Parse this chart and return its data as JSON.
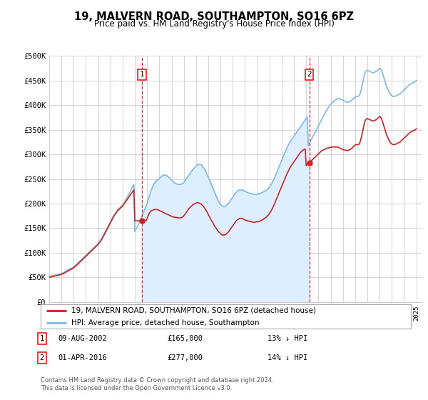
{
  "title": "19, MALVERN ROAD, SOUTHAMPTON, SO16 6PZ",
  "subtitle": "Price paid vs. HM Land Registry's House Price Index (HPI)",
  "ylabel_ticks": [
    "£0",
    "£50K",
    "£100K",
    "£150K",
    "£200K",
    "£250K",
    "£300K",
    "£350K",
    "£400K",
    "£450K",
    "£500K"
  ],
  "ytick_vals": [
    0,
    50000,
    100000,
    150000,
    200000,
    250000,
    300000,
    350000,
    400000,
    450000,
    500000
  ],
  "xlim_start": 1995.0,
  "xlim_end": 2025.5,
  "ylim": [
    0,
    500000
  ],
  "hpi_color": "#7cb9e8",
  "price_color": "#cc2222",
  "transaction_line_color": "#cc2222",
  "shade_color": "#ddeeff",
  "background_color": "#ffffff",
  "grid_color": "#cccccc",
  "legend_label_price": "19, MALVERN ROAD, SOUTHAMPTON, SO16 6PZ (detached house)",
  "legend_label_hpi": "HPI: Average price, detached house, Southampton",
  "transactions": [
    {
      "num": 1,
      "year": 2002.6,
      "label": "09-AUG-2002",
      "amount": "£165,000",
      "pct": "13% ↓ HPI"
    },
    {
      "num": 2,
      "year": 2016.25,
      "label": "01-APR-2016",
      "amount": "£277,000",
      "pct": "14% ↓ HPI"
    }
  ],
  "footer": "Contains HM Land Registry data © Crown copyright and database right 2024.\nThis data is licensed under the Open Government Licence v3.0.",
  "hpi_data_x": [
    1995.0,
    1995.08,
    1995.17,
    1995.25,
    1995.33,
    1995.42,
    1995.5,
    1995.58,
    1995.67,
    1995.75,
    1995.83,
    1995.92,
    1996.0,
    1996.08,
    1996.17,
    1996.25,
    1996.33,
    1996.42,
    1996.5,
    1996.58,
    1996.67,
    1996.75,
    1996.83,
    1996.92,
    1997.0,
    1997.08,
    1997.17,
    1997.25,
    1997.33,
    1997.42,
    1997.5,
    1997.58,
    1997.67,
    1997.75,
    1997.83,
    1997.92,
    1998.0,
    1998.08,
    1998.17,
    1998.25,
    1998.33,
    1998.42,
    1998.5,
    1998.58,
    1998.67,
    1998.75,
    1998.83,
    1998.92,
    1999.0,
    1999.08,
    1999.17,
    1999.25,
    1999.33,
    1999.42,
    1999.5,
    1999.58,
    1999.67,
    1999.75,
    1999.83,
    1999.92,
    2000.0,
    2000.08,
    2000.17,
    2000.25,
    2000.33,
    2000.42,
    2000.5,
    2000.58,
    2000.67,
    2000.75,
    2000.83,
    2000.92,
    2001.0,
    2001.08,
    2001.17,
    2001.25,
    2001.33,
    2001.42,
    2001.5,
    2001.58,
    2001.67,
    2001.75,
    2001.83,
    2001.92,
    2002.0,
    2002.08,
    2002.17,
    2002.25,
    2002.33,
    2002.42,
    2002.5,
    2002.58,
    2002.67,
    2002.75,
    2002.83,
    2002.92,
    2003.0,
    2003.08,
    2003.17,
    2003.25,
    2003.33,
    2003.42,
    2003.5,
    2003.58,
    2003.67,
    2003.75,
    2003.83,
    2003.92,
    2004.0,
    2004.08,
    2004.17,
    2004.25,
    2004.33,
    2004.42,
    2004.5,
    2004.58,
    2004.67,
    2004.75,
    2004.83,
    2004.92,
    2005.0,
    2005.08,
    2005.17,
    2005.25,
    2005.33,
    2005.42,
    2005.5,
    2005.58,
    2005.67,
    2005.75,
    2005.83,
    2005.92,
    2006.0,
    2006.08,
    2006.17,
    2006.25,
    2006.33,
    2006.42,
    2006.5,
    2006.58,
    2006.67,
    2006.75,
    2006.83,
    2006.92,
    2007.0,
    2007.08,
    2007.17,
    2007.25,
    2007.33,
    2007.42,
    2007.5,
    2007.58,
    2007.67,
    2007.75,
    2007.83,
    2007.92,
    2008.0,
    2008.08,
    2008.17,
    2008.25,
    2008.33,
    2008.42,
    2008.5,
    2008.58,
    2008.67,
    2008.75,
    2008.83,
    2008.92,
    2009.0,
    2009.08,
    2009.17,
    2009.25,
    2009.33,
    2009.42,
    2009.5,
    2009.58,
    2009.67,
    2009.75,
    2009.83,
    2009.92,
    2010.0,
    2010.08,
    2010.17,
    2010.25,
    2010.33,
    2010.42,
    2010.5,
    2010.58,
    2010.67,
    2010.75,
    2010.83,
    2010.92,
    2011.0,
    2011.08,
    2011.17,
    2011.25,
    2011.33,
    2011.42,
    2011.5,
    2011.58,
    2011.67,
    2011.75,
    2011.83,
    2011.92,
    2012.0,
    2012.08,
    2012.17,
    2012.25,
    2012.33,
    2012.42,
    2012.5,
    2012.58,
    2012.67,
    2012.75,
    2012.83,
    2012.92,
    2013.0,
    2013.08,
    2013.17,
    2013.25,
    2013.33,
    2013.42,
    2013.5,
    2013.58,
    2013.67,
    2013.75,
    2013.83,
    2013.92,
    2014.0,
    2014.08,
    2014.17,
    2014.25,
    2014.33,
    2014.42,
    2014.5,
    2014.58,
    2014.67,
    2014.75,
    2014.83,
    2014.92,
    2015.0,
    2015.08,
    2015.17,
    2015.25,
    2015.33,
    2015.42,
    2015.5,
    2015.58,
    2015.67,
    2015.75,
    2015.83,
    2015.92,
    2016.0,
    2016.08,
    2016.17,
    2016.25,
    2016.33,
    2016.42,
    2016.5,
    2016.58,
    2016.67,
    2016.75,
    2016.83,
    2016.92,
    2017.0,
    2017.08,
    2017.17,
    2017.25,
    2017.33,
    2017.42,
    2017.5,
    2017.58,
    2017.67,
    2017.75,
    2017.83,
    2017.92,
    2018.0,
    2018.08,
    2018.17,
    2018.25,
    2018.33,
    2018.42,
    2018.5,
    2018.58,
    2018.67,
    2018.75,
    2018.83,
    2018.92,
    2019.0,
    2019.08,
    2019.17,
    2019.25,
    2019.33,
    2019.42,
    2019.5,
    2019.58,
    2019.67,
    2019.75,
    2019.83,
    2019.92,
    2020.0,
    2020.08,
    2020.17,
    2020.25,
    2020.33,
    2020.42,
    2020.5,
    2020.58,
    2020.67,
    2020.75,
    2020.83,
    2020.92,
    2021.0,
    2021.08,
    2021.17,
    2021.25,
    2021.33,
    2021.42,
    2021.5,
    2021.58,
    2021.67,
    2021.75,
    2021.83,
    2021.92,
    2022.0,
    2022.08,
    2022.17,
    2022.25,
    2022.33,
    2022.42,
    2022.5,
    2022.58,
    2022.67,
    2022.75,
    2022.83,
    2022.92,
    2023.0,
    2023.08,
    2023.17,
    2023.25,
    2023.33,
    2023.42,
    2023.5,
    2023.58,
    2023.67,
    2023.75,
    2023.83,
    2023.92,
    2024.0,
    2024.08,
    2024.17,
    2024.25,
    2024.33,
    2024.42,
    2024.5,
    2024.58,
    2024.67,
    2024.75,
    2024.83,
    2024.92,
    2025.0
  ],
  "hpi_data_y": [
    52000,
    52500,
    53000,
    53500,
    54000,
    54500,
    55000,
    55500,
    56000,
    56500,
    57000,
    57500,
    58000,
    59000,
    60000,
    61000,
    62000,
    63500,
    65000,
    66000,
    67000,
    68000,
    69000,
    70000,
    72000,
    73500,
    75000,
    77000,
    79000,
    81000,
    83000,
    85000,
    87000,
    89000,
    91000,
    93000,
    95000,
    97000,
    99000,
    101000,
    103000,
    105000,
    107000,
    109000,
    111000,
    113000,
    115000,
    117000,
    119000,
    122000,
    125000,
    128000,
    131000,
    135000,
    139000,
    143000,
    147000,
    151000,
    155000,
    159000,
    163000,
    167000,
    171000,
    175000,
    178000,
    181000,
    184000,
    187000,
    189000,
    191000,
    193000,
    195000,
    197000,
    200000,
    203000,
    207000,
    211000,
    215000,
    219000,
    223000,
    227000,
    231000,
    235000,
    239000,
    143000,
    147000,
    151000,
    155000,
    160000,
    165000,
    170000,
    175000,
    180000,
    185000,
    190000,
    195000,
    200000,
    207000,
    214000,
    221000,
    227000,
    232000,
    237000,
    241000,
    244000,
    246000,
    248000,
    249000,
    251000,
    253000,
    255000,
    257000,
    258000,
    258000,
    258000,
    257000,
    256000,
    254000,
    252000,
    250000,
    248000,
    246000,
    244000,
    242000,
    241000,
    240000,
    239000,
    239000,
    239000,
    239000,
    240000,
    241000,
    243000,
    246000,
    249000,
    252000,
    255000,
    258000,
    261000,
    264000,
    267000,
    270000,
    272000,
    274000,
    276000,
    278000,
    279000,
    280000,
    280000,
    279000,
    277000,
    274000,
    271000,
    267000,
    263000,
    258000,
    254000,
    249000,
    244000,
    239000,
    234000,
    229000,
    224000,
    219000,
    214000,
    209000,
    205000,
    201000,
    198000,
    196000,
    195000,
    194000,
    194000,
    195000,
    197000,
    199000,
    201000,
    204000,
    207000,
    210000,
    213000,
    216000,
    219000,
    222000,
    224000,
    226000,
    227000,
    228000,
    228000,
    228000,
    227000,
    226000,
    225000,
    224000,
    223000,
    222000,
    221000,
    221000,
    220000,
    220000,
    219000,
    219000,
    219000,
    219000,
    219000,
    219000,
    220000,
    221000,
    222000,
    223000,
    224000,
    225000,
    226000,
    227000,
    229000,
    231000,
    234000,
    237000,
    240000,
    244000,
    248000,
    253000,
    258000,
    263000,
    268000,
    273000,
    278000,
    283000,
    288000,
    293000,
    298000,
    303000,
    308000,
    313000,
    317000,
    321000,
    325000,
    328000,
    331000,
    334000,
    337000,
    340000,
    343000,
    346000,
    349000,
    352000,
    355000,
    358000,
    361000,
    364000,
    367000,
    370000,
    373000,
    376000,
    318000,
    322000,
    326000,
    330000,
    334000,
    338000,
    342000,
    346000,
    350000,
    354000,
    358000,
    362000,
    366000,
    370000,
    374000,
    378000,
    382000,
    386000,
    390000,
    393000,
    396000,
    399000,
    402000,
    404000,
    406000,
    408000,
    410000,
    411000,
    412000,
    413000,
    413000,
    413000,
    412000,
    411000,
    410000,
    409000,
    408000,
    407000,
    406000,
    406000,
    407000,
    408000,
    409000,
    411000,
    413000,
    415000,
    417000,
    418000,
    418000,
    418000,
    419000,
    424000,
    432000,
    441000,
    451000,
    461000,
    467000,
    470000,
    471000,
    470000,
    469000,
    468000,
    467000,
    466000,
    466000,
    467000,
    468000,
    469000,
    471000,
    473000,
    475000,
    474000,
    470000,
    464000,
    457000,
    450000,
    443000,
    437000,
    432000,
    428000,
    424000,
    421000,
    419000,
    418000,
    418000,
    418000,
    419000,
    420000,
    421000,
    422000,
    423000,
    425000,
    427000,
    429000,
    431000,
    433000,
    435000,
    437000,
    439000,
    441000,
    443000,
    444000,
    445000,
    446000,
    447000,
    448000,
    450000
  ],
  "price_data_x": [
    1995.0,
    1995.08,
    1995.17,
    1995.25,
    1995.33,
    1995.42,
    1995.5,
    1995.58,
    1995.67,
    1995.75,
    1995.83,
    1995.92,
    1996.0,
    1996.08,
    1996.17,
    1996.25,
    1996.33,
    1996.42,
    1996.5,
    1996.58,
    1996.67,
    1996.75,
    1996.83,
    1996.92,
    1997.0,
    1997.08,
    1997.17,
    1997.25,
    1997.33,
    1997.42,
    1997.5,
    1997.58,
    1997.67,
    1997.75,
    1997.83,
    1997.92,
    1998.0,
    1998.08,
    1998.17,
    1998.25,
    1998.33,
    1998.42,
    1998.5,
    1998.58,
    1998.67,
    1998.75,
    1998.83,
    1998.92,
    1999.0,
    1999.08,
    1999.17,
    1999.25,
    1999.33,
    1999.42,
    1999.5,
    1999.58,
    1999.67,
    1999.75,
    1999.83,
    1999.92,
    2000.0,
    2000.08,
    2000.17,
    2000.25,
    2000.33,
    2000.42,
    2000.5,
    2000.58,
    2000.67,
    2000.75,
    2000.83,
    2000.92,
    2001.0,
    2001.08,
    2001.17,
    2001.25,
    2001.33,
    2001.42,
    2001.5,
    2001.58,
    2001.67,
    2001.75,
    2001.83,
    2001.92,
    2002.0,
    2002.08,
    2002.17,
    2002.25,
    2002.33,
    2002.42,
    2002.5,
    2002.58,
    2002.67,
    2002.75,
    2002.83,
    2002.92,
    2003.0,
    2003.08,
    2003.17,
    2003.25,
    2003.33,
    2003.42,
    2003.5,
    2003.58,
    2003.67,
    2003.75,
    2003.83,
    2003.92,
    2004.0,
    2004.08,
    2004.17,
    2004.25,
    2004.33,
    2004.42,
    2004.5,
    2004.58,
    2004.67,
    2004.75,
    2004.83,
    2004.92,
    2005.0,
    2005.08,
    2005.17,
    2005.25,
    2005.33,
    2005.42,
    2005.5,
    2005.58,
    2005.67,
    2005.75,
    2005.83,
    2005.92,
    2006.0,
    2006.08,
    2006.17,
    2006.25,
    2006.33,
    2006.42,
    2006.5,
    2006.58,
    2006.67,
    2006.75,
    2006.83,
    2006.92,
    2007.0,
    2007.08,
    2007.17,
    2007.25,
    2007.33,
    2007.42,
    2007.5,
    2007.58,
    2007.67,
    2007.75,
    2007.83,
    2007.92,
    2008.0,
    2008.08,
    2008.17,
    2008.25,
    2008.33,
    2008.42,
    2008.5,
    2008.58,
    2008.67,
    2008.75,
    2008.83,
    2008.92,
    2009.0,
    2009.08,
    2009.17,
    2009.25,
    2009.33,
    2009.42,
    2009.5,
    2009.58,
    2009.67,
    2009.75,
    2009.83,
    2009.92,
    2010.0,
    2010.08,
    2010.17,
    2010.25,
    2010.33,
    2010.42,
    2010.5,
    2010.58,
    2010.67,
    2010.75,
    2010.83,
    2010.92,
    2011.0,
    2011.08,
    2011.17,
    2011.25,
    2011.33,
    2011.42,
    2011.5,
    2011.58,
    2011.67,
    2011.75,
    2011.83,
    2011.92,
    2012.0,
    2012.08,
    2012.17,
    2012.25,
    2012.33,
    2012.42,
    2012.5,
    2012.58,
    2012.67,
    2012.75,
    2012.83,
    2012.92,
    2013.0,
    2013.08,
    2013.17,
    2013.25,
    2013.33,
    2013.42,
    2013.5,
    2013.58,
    2013.67,
    2013.75,
    2013.83,
    2013.92,
    2014.0,
    2014.08,
    2014.17,
    2014.25,
    2014.33,
    2014.42,
    2014.5,
    2014.58,
    2014.67,
    2014.75,
    2014.83,
    2014.92,
    2015.0,
    2015.08,
    2015.17,
    2015.25,
    2015.33,
    2015.42,
    2015.5,
    2015.58,
    2015.67,
    2015.75,
    2015.83,
    2015.92,
    2016.0,
    2016.08,
    2016.17,
    2016.25,
    2016.33,
    2016.42,
    2016.5,
    2016.58,
    2016.67,
    2016.75,
    2016.83,
    2016.92,
    2017.0,
    2017.08,
    2017.17,
    2017.25,
    2017.33,
    2017.42,
    2017.5,
    2017.58,
    2017.67,
    2017.75,
    2017.83,
    2017.92,
    2018.0,
    2018.08,
    2018.17,
    2018.25,
    2018.33,
    2018.42,
    2018.5,
    2018.58,
    2018.67,
    2018.75,
    2018.83,
    2018.92,
    2019.0,
    2019.08,
    2019.17,
    2019.25,
    2019.33,
    2019.42,
    2019.5,
    2019.58,
    2019.67,
    2019.75,
    2019.83,
    2019.92,
    2020.0,
    2020.08,
    2020.17,
    2020.25,
    2020.33,
    2020.42,
    2020.5,
    2020.58,
    2020.67,
    2020.75,
    2020.83,
    2020.92,
    2021.0,
    2021.08,
    2021.17,
    2021.25,
    2021.33,
    2021.42,
    2021.5,
    2021.58,
    2021.67,
    2021.75,
    2021.83,
    2021.92,
    2022.0,
    2022.08,
    2022.17,
    2022.25,
    2022.33,
    2022.42,
    2022.5,
    2022.58,
    2022.67,
    2022.75,
    2022.83,
    2022.92,
    2023.0,
    2023.08,
    2023.17,
    2023.25,
    2023.33,
    2023.42,
    2023.5,
    2023.58,
    2023.67,
    2023.75,
    2023.83,
    2023.92,
    2024.0,
    2024.08,
    2024.17,
    2024.25,
    2024.33,
    2024.42,
    2024.5,
    2024.58,
    2024.67,
    2024.75,
    2024.83,
    2024.92,
    2025.0
  ],
  "price_data_y": [
    50000,
    50500,
    51000,
    51500,
    52000,
    52500,
    53000,
    53500,
    54000,
    54500,
    55000,
    55500,
    56000,
    57000,
    58000,
    59000,
    60000,
    61500,
    63000,
    64000,
    65000,
    66000,
    67000,
    68000,
    70000,
    71500,
    73000,
    75000,
    77000,
    79000,
    81000,
    83000,
    85000,
    87000,
    89000,
    91000,
    93000,
    95000,
    97000,
    99000,
    101000,
    103000,
    105000,
    107000,
    109000,
    111000,
    113000,
    115000,
    117000,
    120000,
    123000,
    126000,
    129000,
    133000,
    137000,
    141000,
    145000,
    149000,
    153000,
    157000,
    161000,
    165000,
    169000,
    173000,
    176000,
    179000,
    182000,
    185000,
    187000,
    189000,
    191000,
    193000,
    195000,
    198000,
    201000,
    204000,
    207000,
    210000,
    213000,
    216000,
    219000,
    222000,
    225000,
    228000,
    165000,
    165000,
    165000,
    165000,
    165000,
    165000,
    165000,
    165000,
    165000,
    165000,
    165000,
    165000,
    170000,
    175000,
    180000,
    183000,
    185000,
    186000,
    187000,
    188000,
    188000,
    188000,
    188000,
    187000,
    186000,
    185000,
    184000,
    183000,
    182000,
    181000,
    180000,
    179000,
    178000,
    177000,
    176000,
    175000,
    174000,
    173000,
    173000,
    172000,
    172000,
    172000,
    171000,
    171000,
    171000,
    171000,
    172000,
    173000,
    175000,
    178000,
    181000,
    184000,
    187000,
    190000,
    192000,
    194000,
    196000,
    198000,
    199000,
    200000,
    201000,
    202000,
    202000,
    201000,
    200000,
    199000,
    197000,
    195000,
    192000,
    189000,
    186000,
    182000,
    178000,
    174000,
    170000,
    166000,
    163000,
    159000,
    155000,
    152000,
    149000,
    146000,
    143000,
    141000,
    139000,
    137000,
    136000,
    136000,
    136000,
    137000,
    139000,
    141000,
    143000,
    146000,
    149000,
    152000,
    155000,
    158000,
    161000,
    164000,
    166000,
    168000,
    169000,
    170000,
    170000,
    170000,
    169000,
    168000,
    167000,
    166000,
    165000,
    165000,
    164000,
    164000,
    163000,
    163000,
    162000,
    162000,
    162000,
    163000,
    163000,
    163000,
    164000,
    165000,
    166000,
    167000,
    168000,
    170000,
    171000,
    173000,
    175000,
    177000,
    180000,
    183000,
    187000,
    191000,
    195000,
    200000,
    205000,
    210000,
    215000,
    220000,
    225000,
    230000,
    235000,
    240000,
    245000,
    250000,
    255000,
    260000,
    264000,
    268000,
    272000,
    276000,
    279000,
    282000,
    285000,
    288000,
    291000,
    294000,
    297000,
    300000,
    303000,
    305000,
    307000,
    309000,
    310000,
    311000,
    277000,
    279000,
    281000,
    283000,
    285000,
    287000,
    289000,
    291000,
    293000,
    295000,
    297000,
    299000,
    301000,
    303000,
    305000,
    307000,
    308000,
    309000,
    310000,
    311000,
    312000,
    313000,
    313000,
    314000,
    314000,
    315000,
    315000,
    315000,
    315000,
    315000,
    315000,
    315000,
    314000,
    313000,
    312000,
    311000,
    310000,
    309000,
    309000,
    308000,
    308000,
    308000,
    309000,
    310000,
    311000,
    313000,
    315000,
    317000,
    319000,
    320000,
    320000,
    320000,
    321000,
    326000,
    334000,
    343000,
    353000,
    363000,
    369000,
    372000,
    373000,
    372000,
    371000,
    370000,
    369000,
    368000,
    368000,
    369000,
    370000,
    371000,
    373000,
    375000,
    377000,
    376000,
    372000,
    366000,
    359000,
    352000,
    345000,
    339000,
    334000,
    330000,
    326000,
    323000,
    321000,
    320000,
    320000,
    320000,
    321000,
    322000,
    323000,
    324000,
    325000,
    327000,
    329000,
    331000,
    333000,
    335000,
    337000,
    339000,
    341000,
    343000,
    345000,
    346000,
    347000,
    348000,
    349000,
    350000,
    352000
  ]
}
